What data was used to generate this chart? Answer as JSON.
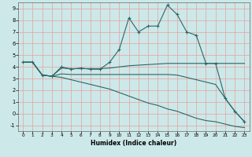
{
  "xlabel": "Humidex (Indice chaleur)",
  "background_color": "#cde8e8",
  "grid_color": "#e8a0a0",
  "line_color": "#2a6868",
  "xlim": [
    -0.5,
    23.5
  ],
  "ylim": [
    -1.5,
    9.5
  ],
  "xticks": [
    0,
    1,
    2,
    3,
    4,
    5,
    6,
    7,
    8,
    9,
    10,
    11,
    12,
    13,
    14,
    15,
    16,
    17,
    18,
    19,
    20,
    21,
    22,
    23
  ],
  "yticks": [
    -1,
    0,
    1,
    2,
    3,
    4,
    5,
    6,
    7,
    8,
    9
  ],
  "line1_x": [
    0,
    1,
    2,
    3,
    4,
    5,
    6,
    7,
    8,
    9,
    10,
    11,
    12,
    13,
    14,
    15,
    16,
    17,
    18,
    19,
    20,
    21,
    22,
    23
  ],
  "line1_y": [
    4.4,
    4.4,
    3.3,
    3.2,
    4.0,
    3.8,
    3.9,
    3.8,
    3.8,
    4.4,
    5.5,
    8.2,
    7.0,
    7.5,
    7.5,
    9.3,
    8.5,
    7.0,
    6.7,
    4.3,
    4.3,
    1.3,
    0.2,
    -0.7
  ],
  "line2_x": [
    0,
    1,
    2,
    3,
    4,
    5,
    6,
    7,
    8,
    9,
    10,
    11,
    12,
    13,
    14,
    15,
    16,
    17,
    18,
    19,
    20,
    21,
    22,
    23
  ],
  "line2_y": [
    4.4,
    4.4,
    3.3,
    3.2,
    3.9,
    3.85,
    3.85,
    3.85,
    3.85,
    3.9,
    4.0,
    4.1,
    4.15,
    4.2,
    4.25,
    4.3,
    4.3,
    4.3,
    4.3,
    4.3,
    4.3,
    4.3,
    4.3,
    4.3
  ],
  "line3_x": [
    0,
    1,
    2,
    3,
    4,
    5,
    6,
    7,
    8,
    9,
    10,
    11,
    12,
    13,
    14,
    15,
    16,
    17,
    18,
    19,
    20,
    21,
    22,
    23
  ],
  "line3_y": [
    4.4,
    4.4,
    3.3,
    3.2,
    3.4,
    3.35,
    3.35,
    3.35,
    3.35,
    3.35,
    3.35,
    3.35,
    3.35,
    3.35,
    3.35,
    3.35,
    3.3,
    3.1,
    2.9,
    2.7,
    2.5,
    1.3,
    0.2,
    -0.7
  ],
  "line4_x": [
    0,
    1,
    2,
    3,
    4,
    5,
    6,
    7,
    8,
    9,
    10,
    11,
    12,
    13,
    14,
    15,
    16,
    17,
    18,
    19,
    20,
    21,
    22,
    23
  ],
  "line4_y": [
    4.4,
    4.4,
    3.3,
    3.2,
    3.1,
    2.9,
    2.7,
    2.5,
    2.3,
    2.1,
    1.8,
    1.5,
    1.2,
    0.9,
    0.7,
    0.4,
    0.2,
    -0.1,
    -0.4,
    -0.6,
    -0.7,
    -0.9,
    -1.1,
    -1.2
  ]
}
